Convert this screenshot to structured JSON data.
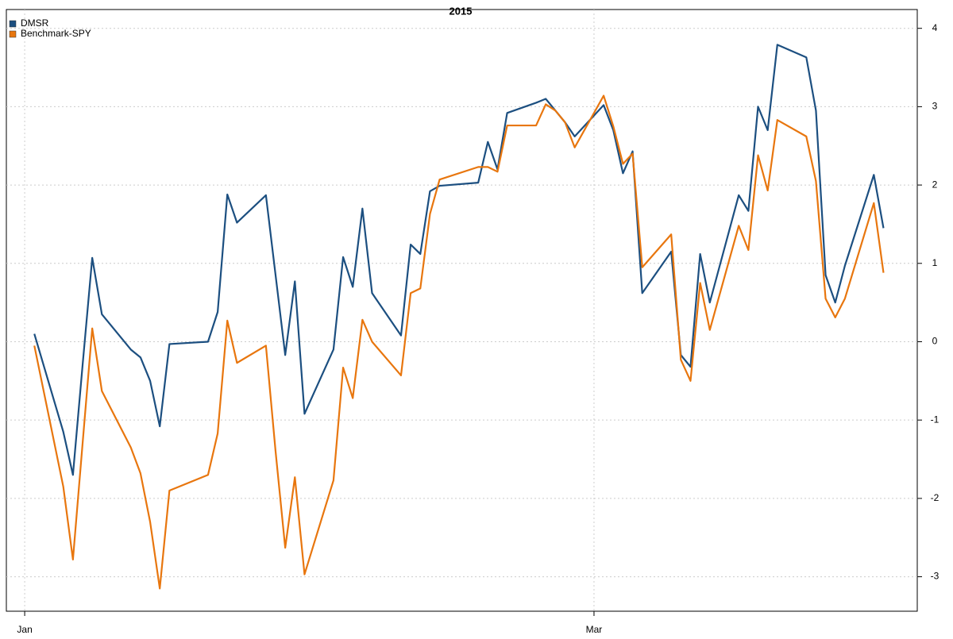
{
  "chart_data": {
    "type": "line",
    "title": "2015",
    "x": [
      2,
      5,
      6,
      7,
      8,
      9,
      12,
      13,
      14,
      15,
      16,
      20,
      21,
      22,
      23,
      26,
      27,
      28,
      29,
      30,
      33,
      34,
      35,
      36,
      37,
      40,
      41,
      42,
      43,
      44,
      48,
      49,
      50,
      51,
      54,
      55,
      56,
      57,
      58,
      61,
      62,
      63,
      64,
      65,
      68,
      69,
      70,
      71,
      72,
      75,
      76,
      77,
      78,
      79,
      82,
      83,
      84,
      85,
      86,
      89,
      90
    ],
    "series": [
      {
        "name": "DMSR",
        "color": "#1c4f80",
        "values": [
          0.1,
          -1.15,
          -1.7,
          -0.3,
          1.07,
          0.35,
          -0.1,
          -0.2,
          -0.5,
          -1.08,
          -0.03,
          0,
          0.38,
          1.88,
          1.52,
          1.87,
          0.85,
          -0.17,
          0.77,
          -0.92,
          -0.1,
          1.08,
          0.7,
          1.7,
          0.62,
          0.08,
          1.24,
          1.12,
          1.92,
          1.99,
          2.03,
          2.55,
          2.2,
          2.92,
          3.05,
          3.1,
          2.95,
          2.8,
          2.62,
          3.02,
          2.7,
          2.15,
          2.43,
          0.62,
          1.15,
          -0.17,
          -0.32,
          1.12,
          0.5,
          1.87,
          1.67,
          3.0,
          2.7,
          3.79,
          3.63,
          2.95,
          0.85,
          0.5,
          0.97,
          2.13,
          1.45
        ]
      },
      {
        "name": "Benchmark-SPY",
        "color": "#e8760e",
        "values": [
          -0.05,
          -1.85,
          -2.78,
          -1.3,
          0.17,
          -0.63,
          -1.35,
          -1.68,
          -2.3,
          -3.15,
          -1.9,
          -1.7,
          -1.17,
          0.27,
          -0.27,
          -0.05,
          -1.4,
          -2.63,
          -1.73,
          -2.97,
          -1.77,
          -0.33,
          -0.72,
          0.28,
          0.0,
          -0.43,
          0.62,
          0.68,
          1.63,
          2.07,
          2.23,
          2.23,
          2.17,
          2.76,
          2.76,
          3.03,
          2.95,
          2.8,
          2.48,
          3.14,
          2.75,
          2.27,
          2.4,
          0.95,
          1.37,
          -0.23,
          -0.5,
          0.75,
          0.15,
          1.48,
          1.17,
          2.38,
          1.93,
          2.83,
          2.62,
          2.05,
          0.55,
          0.31,
          0.55,
          1.77,
          0.88
        ]
      }
    ],
    "xlim": [
      -0.9,
      93.5
    ],
    "xticks": [
      {
        "value": 1,
        "label": "Jan"
      },
      {
        "value": 60,
        "label": "Mar"
      }
    ],
    "ylim": [
      -3.44,
      4.24
    ],
    "yticks": [
      -3,
      -2,
      -1,
      0,
      1,
      2,
      3,
      4
    ],
    "grid": true,
    "legend": "top-left"
  }
}
